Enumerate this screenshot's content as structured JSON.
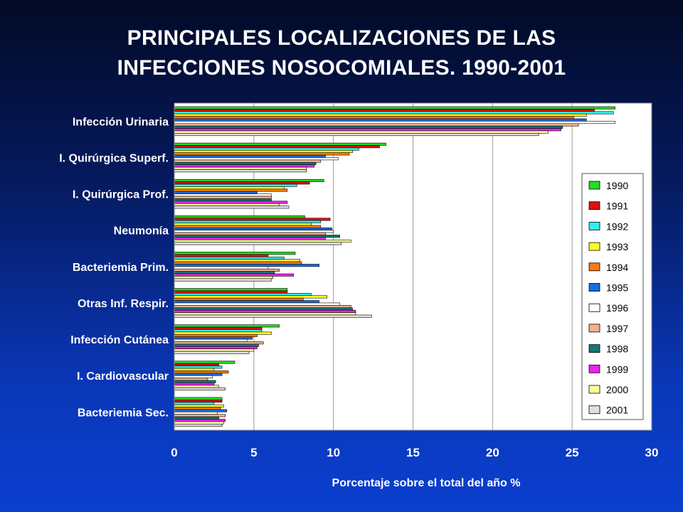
{
  "title_line1": "PRINCIPALES LOCALIZACIONES DE LAS",
  "title_line2": "INFECCIONES NOSOCOMIALES. 1990-2001",
  "chart_data": {
    "type": "bar",
    "orientation": "horizontal",
    "categories": [
      "Infección Urinaria",
      "I. Quirúrgica Superf.",
      "I. Quirúrgica Prof.",
      "Neumonía",
      "Bacteriemia Prim.",
      "Otras Inf. Respir.",
      "Infección Cutánea",
      "I. Cardiovascular",
      "Bacteriemia Sec."
    ],
    "xlabel": "Porcentaje sobre el total del año %",
    "ylabel": "",
    "xlim": [
      0,
      30
    ],
    "ticks": [
      0,
      5,
      10,
      15,
      20,
      25,
      30
    ],
    "grid": "vertical",
    "legend_position": "right",
    "series": [
      {
        "name": "1990",
        "color": "#22dd22",
        "values": [
          27.7,
          13.3,
          9.4,
          8.2,
          7.6,
          7.1,
          6.6,
          3.8,
          3.0
        ]
      },
      {
        "name": "1991",
        "color": "#e01010",
        "values": [
          26.4,
          12.9,
          8.5,
          9.8,
          5.9,
          7.1,
          5.5,
          2.8,
          3.0
        ]
      },
      {
        "name": "1992",
        "color": "#33eeee",
        "values": [
          27.6,
          11.6,
          7.7,
          9.2,
          6.9,
          8.6,
          5.5,
          3.0,
          2.5
        ]
      },
      {
        "name": "1993",
        "color": "#ffff22",
        "values": [
          25.9,
          11.2,
          6.9,
          8.6,
          7.9,
          9.6,
          6.1,
          2.5,
          3.1
        ]
      },
      {
        "name": "1994",
        "color": "#ff7a10",
        "values": [
          25.1,
          11.0,
          7.1,
          9.2,
          8.0,
          8.1,
          5.2,
          3.4,
          2.9
        ]
      },
      {
        "name": "1995",
        "color": "#1a6de0",
        "values": [
          25.9,
          9.5,
          5.2,
          9.9,
          9.1,
          9.1,
          4.9,
          3.0,
          3.3
        ]
      },
      {
        "name": "1996",
        "color": "#ffffff",
        "values": [
          27.7,
          10.3,
          6.1,
          10.0,
          5.9,
          10.4,
          4.6,
          2.4,
          2.7
        ]
      },
      {
        "name": "1997",
        "color": "#f5b088",
        "values": [
          25.4,
          9.2,
          6.1,
          9.5,
          6.6,
          11.1,
          5.6,
          2.1,
          3.2
        ]
      },
      {
        "name": "1998",
        "color": "#117777",
        "values": [
          24.4,
          8.9,
          6.1,
          10.4,
          6.3,
          11.2,
          5.3,
          2.6,
          2.8
        ]
      },
      {
        "name": "1999",
        "color": "#ee22ee",
        "values": [
          24.3,
          8.8,
          7.1,
          9.5,
          7.5,
          11.4,
          5.2,
          2.5,
          3.2
        ]
      },
      {
        "name": "2000",
        "color": "#ffff99",
        "values": [
          23.5,
          8.3,
          6.6,
          11.1,
          6.2,
          11.4,
          5.0,
          2.8,
          3.1
        ]
      },
      {
        "name": "2001",
        "color": "#e0e0e0",
        "values": [
          22.9,
          8.3,
          7.2,
          10.5,
          6.1,
          12.4,
          4.7,
          3.2,
          3.0
        ]
      }
    ]
  }
}
